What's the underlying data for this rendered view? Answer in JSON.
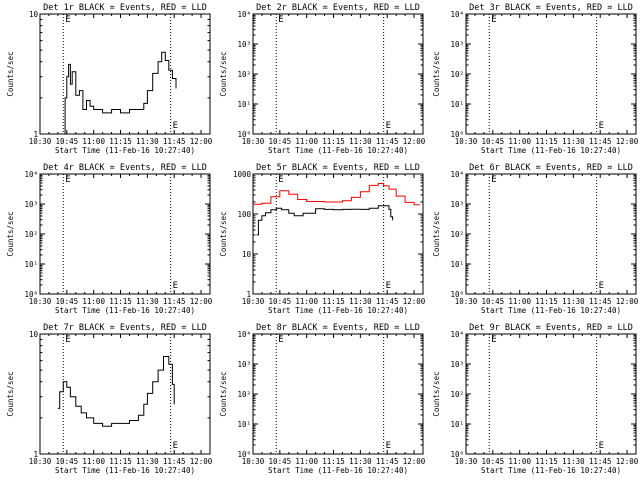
{
  "figure": {
    "background": "#ffffff",
    "colors": {
      "events": "#000000",
      "lld": "#ff0000"
    }
  },
  "chart_data": [
    {
      "type": "line",
      "title": "Det 1r BLACK = Events, RED = LLD",
      "xlabel": "Start Time (11-Feb-16 10:27:40)",
      "ylabel": "Counts/sec",
      "xlim": [
        "10:30",
        "12:05"
      ],
      "ylim": [
        1,
        10
      ],
      "log_y": true,
      "x_ticks": [
        "10:30",
        "10:45",
        "11:00",
        "11:15",
        "11:30",
        "11:45",
        "12:00"
      ],
      "y_ticks": [
        "1",
        "10",
        "100"
      ],
      "grid": false,
      "markers": [
        {
          "x": "10:43",
          "label": "E"
        },
        {
          "x": "11:43",
          "label": "E"
        }
      ],
      "series": [
        {
          "color": "#000000",
          "x": [
            "10:43",
            "10:44",
            "10:45",
            "10:46",
            "10:47",
            "10:48",
            "10:50",
            "10:52",
            "10:54",
            "10:56",
            "10:58",
            "11:00",
            "11:05",
            "11:10",
            "11:15",
            "11:20",
            "11:25",
            "11:28",
            "11:30",
            "11:33",
            "11:36",
            "11:38",
            "11:40",
            "11:42",
            "11:44",
            "11:46"
          ],
          "y": [
            1.0,
            2.0,
            3.0,
            3.8,
            2.6,
            3.3,
            2.1,
            2.3,
            1.6,
            1.9,
            1.7,
            1.6,
            1.5,
            1.6,
            1.5,
            1.6,
            1.6,
            1.8,
            2.3,
            3.2,
            4.0,
            4.8,
            4.1,
            3.4,
            2.9,
            2.4
          ]
        }
      ]
    },
    {
      "type": "line",
      "title": "Det 2r BLACK = Events, RED = LLD",
      "xlabel": "Start Time (11-Feb-16 10:27:40)",
      "ylabel": "Counts/sec",
      "xlim": [
        "10:30",
        "12:05"
      ],
      "ylim": [
        1,
        10000
      ],
      "log_y": true,
      "x_ticks": [
        "10:30",
        "10:45",
        "11:00",
        "11:15",
        "11:30",
        "11:45",
        "12:00"
      ],
      "y_ticks": [
        "10⁰",
        "10¹",
        "10²",
        "10³",
        "10⁴"
      ],
      "grid": false,
      "markers": [
        {
          "x": "10:43",
          "label": "E"
        },
        {
          "x": "11:43",
          "label": "E"
        }
      ],
      "series": []
    },
    {
      "type": "line",
      "title": "Det 3r BLACK = Events, RED = LLD",
      "xlabel": "Start Time (11-Feb-16 10:27:40)",
      "ylabel": "Counts/sec",
      "xlim": [
        "10:30",
        "12:05"
      ],
      "ylim": [
        1,
        10000
      ],
      "log_y": true,
      "x_ticks": [
        "10:30",
        "10:45",
        "11:00",
        "11:15",
        "11:30",
        "11:45",
        "12:00"
      ],
      "y_ticks": [
        "10⁰",
        "10¹",
        "10²",
        "10³",
        "10⁴"
      ],
      "grid": false,
      "markers": [
        {
          "x": "10:43",
          "label": "E"
        },
        {
          "x": "11:43",
          "label": "E"
        }
      ],
      "series": []
    },
    {
      "type": "line",
      "title": "Det 4r BLACK = Events, RED = LLD",
      "xlabel": "Start Time (11-Feb-16 10:27:40)",
      "ylabel": "Counts/sec",
      "xlim": [
        "10:30",
        "12:05"
      ],
      "ylim": [
        1,
        10000
      ],
      "log_y": true,
      "x_ticks": [
        "10:30",
        "10:45",
        "11:00",
        "11:15",
        "11:30",
        "11:45",
        "12:00"
      ],
      "y_ticks": [
        "10⁰",
        "10¹",
        "10²",
        "10³",
        "10⁴"
      ],
      "grid": false,
      "markers": [
        {
          "x": "10:43",
          "label": "E"
        },
        {
          "x": "11:43",
          "label": "E"
        }
      ],
      "series": []
    },
    {
      "type": "line",
      "title": "Det 5r BLACK = Events, RED = LLD",
      "xlabel": "Start Time (11-Feb-16 10:27:40)",
      "ylabel": "Counts/sec",
      "xlim": [
        "10:30",
        "12:05"
      ],
      "ylim": [
        1,
        1000
      ],
      "log_y": true,
      "x_ticks": [
        "10:30",
        "10:45",
        "11:00",
        "11:15",
        "11:30",
        "11:45",
        "12:00"
      ],
      "y_ticks": [
        "1",
        "10",
        "100",
        "1000"
      ],
      "grid": false,
      "markers": [
        {
          "x": "10:43",
          "label": "E"
        },
        {
          "x": "11:43",
          "label": "E"
        }
      ],
      "series": [
        {
          "color": "#000000",
          "x": [
            "10:32",
            "10:33",
            "10:35",
            "10:37",
            "10:40",
            "10:43",
            "10:46",
            "10:50",
            "10:53",
            "10:58",
            "11:05",
            "11:10",
            "11:15",
            "11:20",
            "11:25",
            "11:30",
            "11:35",
            "11:40",
            "11:43",
            "11:46",
            "11:47",
            "11:48"
          ],
          "y": [
            30,
            70,
            90,
            108,
            128,
            140,
            128,
            105,
            90,
            105,
            135,
            130,
            128,
            130,
            132,
            130,
            140,
            160,
            160,
            130,
            85,
            70
          ]
        },
        {
          "color": "#ff0000",
          "x": [
            "10:30",
            "10:35",
            "10:40",
            "10:45",
            "10:50",
            "10:55",
            "11:00",
            "11:05",
            "11:10",
            "11:15",
            "11:20",
            "11:25",
            "11:30",
            "11:35",
            "11:40",
            "11:43",
            "11:46",
            "11:50",
            "11:55",
            "12:00",
            "12:03"
          ],
          "y": [
            175,
            185,
            270,
            380,
            310,
            230,
            205,
            205,
            200,
            200,
            215,
            260,
            360,
            520,
            580,
            510,
            420,
            280,
            195,
            170,
            165
          ]
        }
      ]
    },
    {
      "type": "line",
      "title": "Det 6r BLACK = Events, RED = LLD",
      "xlabel": "Start Time (11-Feb-16 10:27:40)",
      "ylabel": "Counts/sec",
      "xlim": [
        "10:30",
        "12:05"
      ],
      "ylim": [
        1,
        10000
      ],
      "log_y": true,
      "x_ticks": [
        "10:30",
        "10:45",
        "11:00",
        "11:15",
        "11:30",
        "11:45",
        "12:00"
      ],
      "y_ticks": [
        "10⁰",
        "10¹",
        "10²",
        "10³",
        "10⁴"
      ],
      "grid": false,
      "markers": [
        {
          "x": "10:43",
          "label": "E"
        },
        {
          "x": "11:43",
          "label": "E"
        }
      ],
      "series": []
    },
    {
      "type": "line",
      "title": "Det 7r BLACK = Events, RED = LLD",
      "xlabel": "Start Time (11-Feb-16 10:27:40)",
      "ylabel": "Counts/sec",
      "xlim": [
        "10:30",
        "12:05"
      ],
      "ylim": [
        1,
        10
      ],
      "log_y": true,
      "x_ticks": [
        "10:30",
        "10:45",
        "11:00",
        "11:15",
        "11:30",
        "11:45",
        "12:00"
      ],
      "y_ticks": [
        "1",
        "10"
      ],
      "grid": false,
      "markers": [
        {
          "x": "10:43",
          "label": "E"
        },
        {
          "x": "11:43",
          "label": "E"
        }
      ],
      "series": [
        {
          "color": "#000000",
          "x": [
            "10:40",
            "10:41",
            "10:43",
            "10:45",
            "10:47",
            "10:50",
            "10:53",
            "10:56",
            "11:00",
            "11:05",
            "11:10",
            "11:15",
            "11:20",
            "11:25",
            "11:28",
            "11:30",
            "11:33",
            "11:36",
            "11:39",
            "11:42",
            "11:44",
            "11:45"
          ],
          "y": [
            2.4,
            3.3,
            4.0,
            3.6,
            3.0,
            2.5,
            2.2,
            2.0,
            1.8,
            1.7,
            1.8,
            1.8,
            1.9,
            2.1,
            2.6,
            3.2,
            4.0,
            5.0,
            6.5,
            5.6,
            3.8,
            2.6
          ]
        }
      ]
    },
    {
      "type": "line",
      "title": "Det 8r BLACK = Events, RED = LLD",
      "xlabel": "Start Time (11-Feb-16 10:27:40)",
      "ylabel": "Counts/sec",
      "xlim": [
        "10:30",
        "12:05"
      ],
      "ylim": [
        1,
        10000
      ],
      "log_y": true,
      "x_ticks": [
        "10:30",
        "10:45",
        "11:00",
        "11:15",
        "11:30",
        "11:45",
        "12:00"
      ],
      "y_ticks": [
        "10⁰",
        "10¹",
        "10²",
        "10³",
        "10⁴"
      ],
      "grid": false,
      "markers": [
        {
          "x": "10:43",
          "label": "E"
        },
        {
          "x": "11:43",
          "label": "E"
        }
      ],
      "series": []
    },
    {
      "type": "line",
      "title": "Det 9r BLACK = Events, RED = LLD",
      "xlabel": "Start Time (11-Feb-16 10:27:40)",
      "ylabel": "Counts/sec",
      "xlim": [
        "10:30",
        "12:05"
      ],
      "ylim": [
        1,
        10000
      ],
      "log_y": true,
      "x_ticks": [
        "10:30",
        "10:45",
        "11:00",
        "11:15",
        "11:30",
        "11:45",
        "12:00"
      ],
      "y_ticks": [
        "10⁰",
        "10¹",
        "10²",
        "10³",
        "10⁴"
      ],
      "grid": false,
      "markers": [
        {
          "x": "10:43",
          "label": "E"
        },
        {
          "x": "11:43",
          "label": "E"
        }
      ],
      "series": []
    }
  ]
}
